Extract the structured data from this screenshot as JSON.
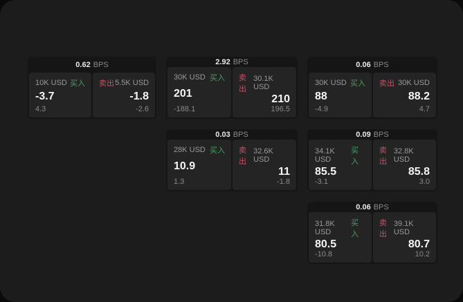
{
  "labels": {
    "bps": "BPS",
    "buy": "买入",
    "sell": "卖出"
  },
  "colors": {
    "buy": "#4a9e62",
    "sell": "#c05364",
    "card_bg": "#151515",
    "panel_bg": "#242424",
    "window_bg": "#1c1c1c"
  },
  "cards": [
    {
      "bps": "0.62",
      "buy": {
        "size": "10K USD",
        "price": "-3.7",
        "delta": "4.3"
      },
      "sell": {
        "size": "5.5K USD",
        "price": "-1.8",
        "delta": "-2.6"
      }
    },
    {
      "bps": "2.92",
      "buy": {
        "size": "30K USD",
        "price": "201",
        "delta": "-188.1"
      },
      "sell": {
        "size": "30.1K USD",
        "price": "210",
        "delta": "196.5"
      }
    },
    {
      "bps": "0.06",
      "buy": {
        "size": "30K USD",
        "price": "88",
        "delta": "-4.9"
      },
      "sell": {
        "size": "30K USD",
        "price": "88.2",
        "delta": "4.7"
      }
    },
    {
      "bps": "0.03",
      "buy": {
        "size": "28K USD",
        "price": "10.9",
        "delta": "1.3"
      },
      "sell": {
        "size": "32.6K USD",
        "price": "11",
        "delta": "-1.8"
      }
    },
    {
      "bps": "0.09",
      "buy": {
        "size": "34.1K USD",
        "price": "85.5",
        "delta": "-3.1"
      },
      "sell": {
        "size": "32.8K USD",
        "price": "85.8",
        "delta": "3.0"
      }
    },
    {
      "bps": "0.06",
      "buy": {
        "size": "31.8K USD",
        "price": "80.5",
        "delta": "-10.8"
      },
      "sell": {
        "size": "39.1K USD",
        "price": "80.7",
        "delta": "10.2"
      }
    }
  ]
}
